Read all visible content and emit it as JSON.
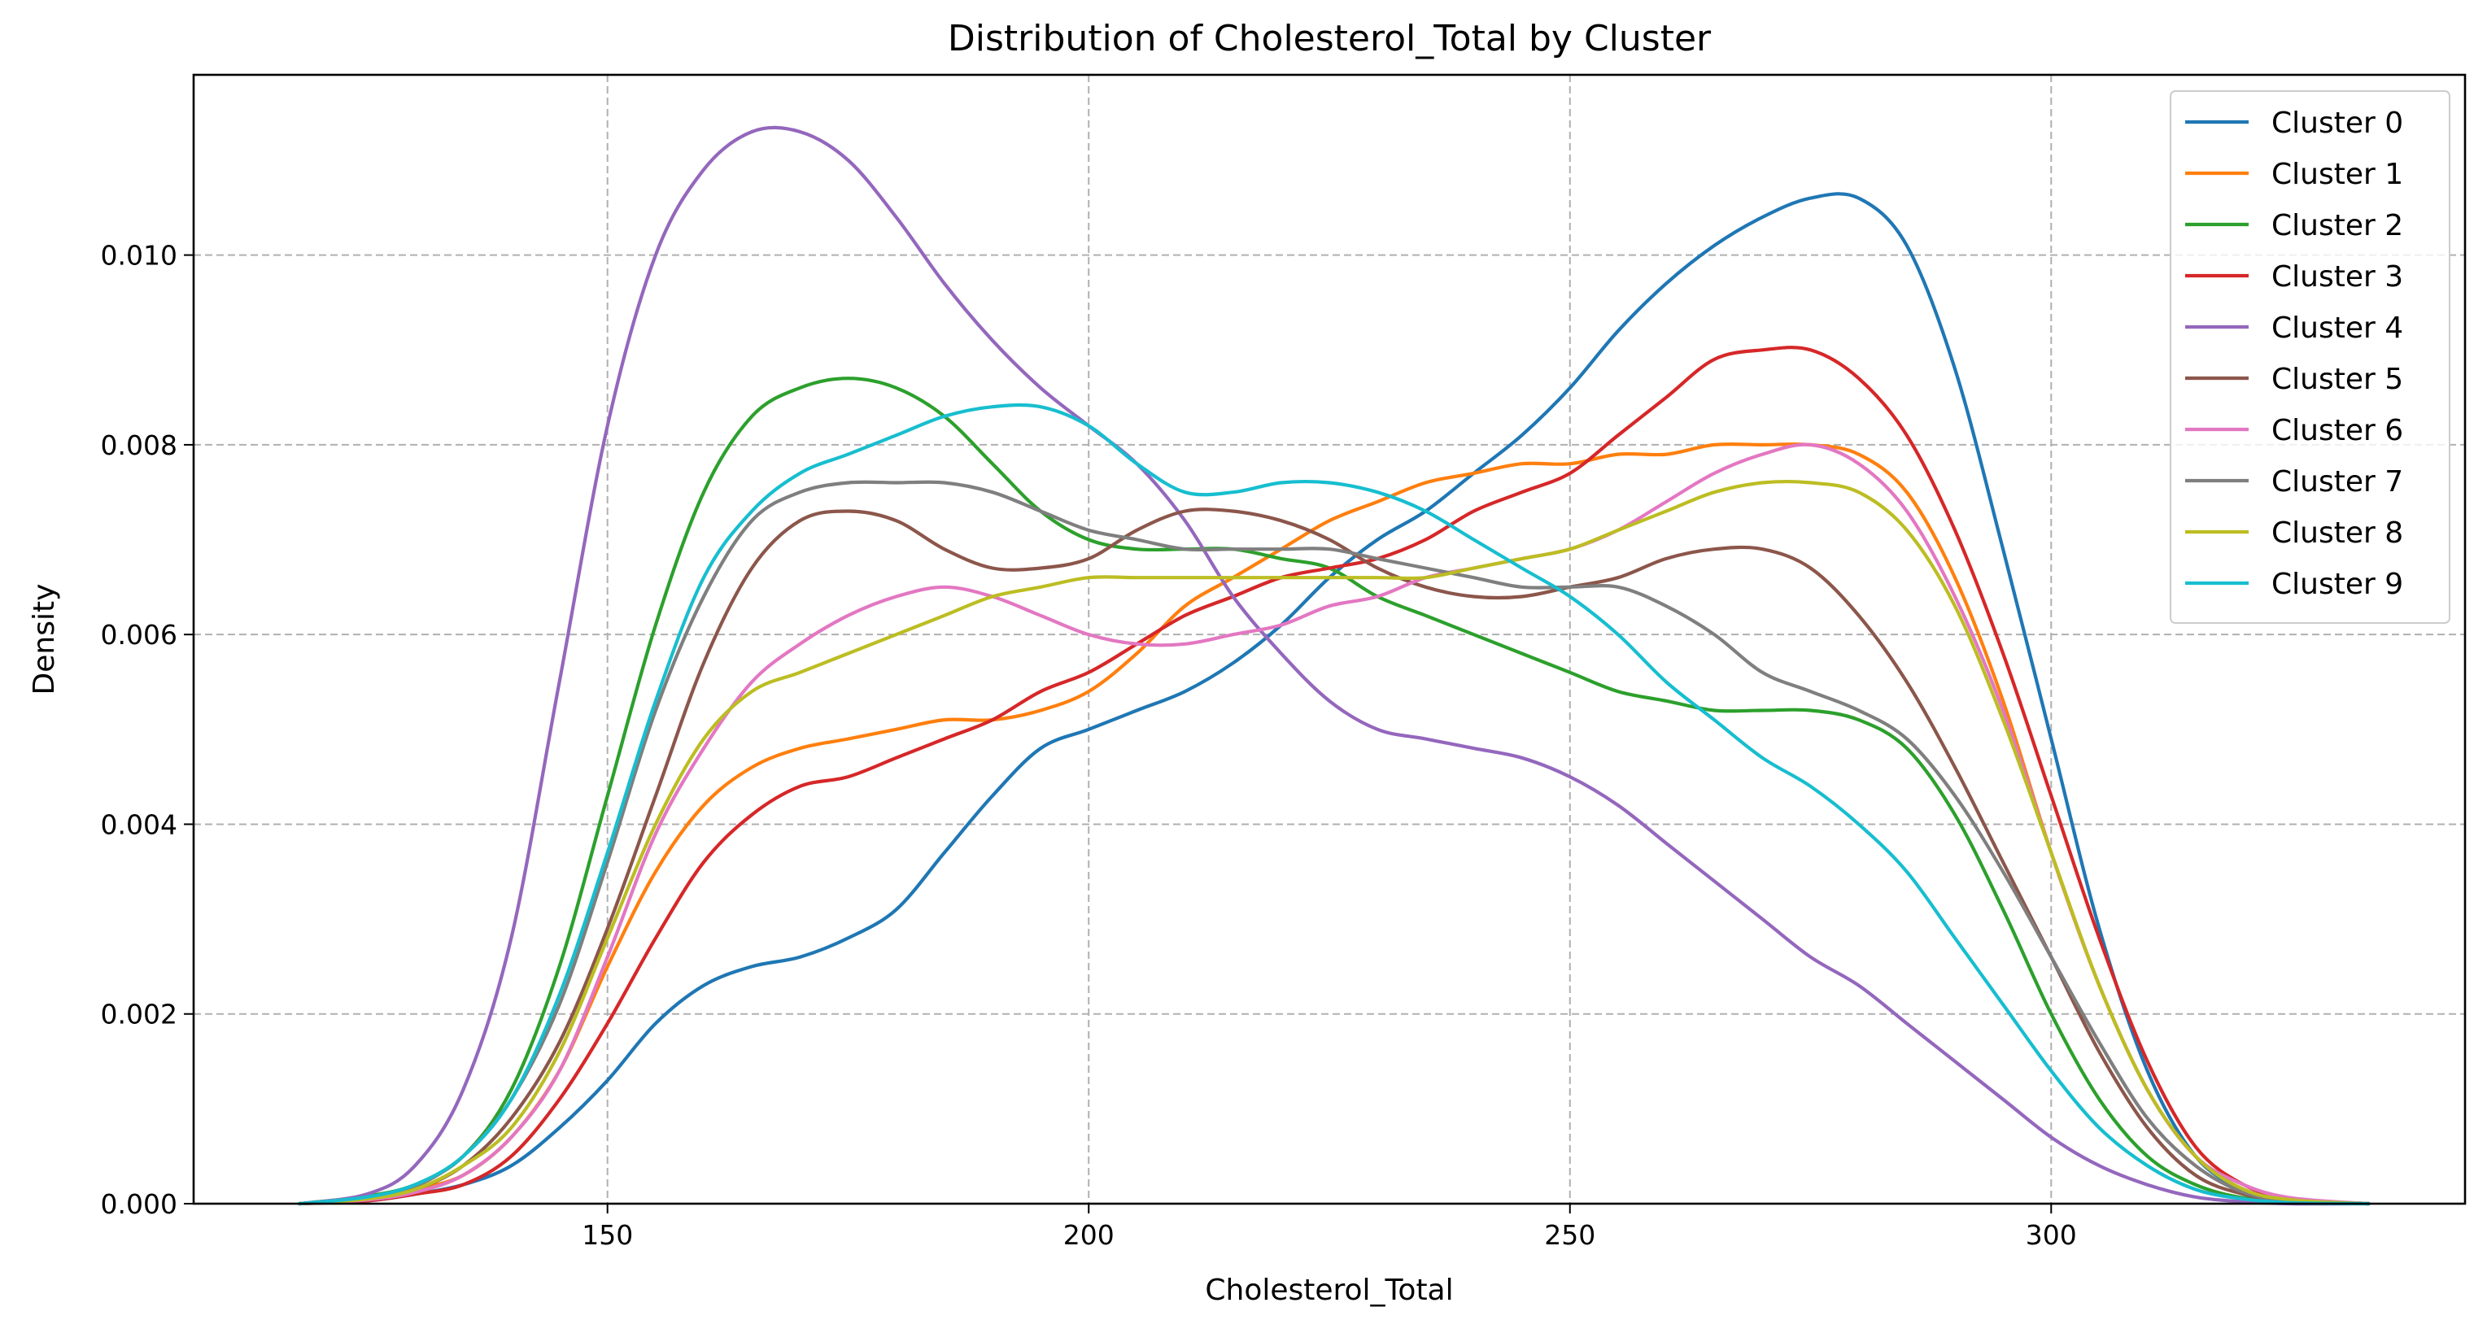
{
  "chart_data": {
    "type": "line",
    "title": "Distribution of Cholesterol_Total by Cluster",
    "xlabel": "Cholesterol_Total",
    "ylabel": "Density",
    "xlim": [
      107,
      343
    ],
    "ylim": [
      0,
      0.0119
    ],
    "x_ticks": [
      150,
      200,
      250,
      300
    ],
    "x_tick_labels": [
      "150",
      "200",
      "250",
      "300"
    ],
    "y_ticks": [
      0,
      0.002,
      0.004,
      0.006,
      0.008,
      0.01
    ],
    "y_tick_labels": [
      "0.000",
      "0.002",
      "0.004",
      "0.006",
      "0.008",
      "0.010"
    ],
    "grid": true,
    "legend_position": "top-right",
    "x": [
      118,
      125,
      130,
      135,
      140,
      145,
      150,
      155,
      160,
      165,
      170,
      175,
      180,
      185,
      190,
      195,
      200,
      205,
      210,
      215,
      220,
      225,
      230,
      235,
      240,
      245,
      250,
      255,
      260,
      265,
      270,
      275,
      280,
      285,
      290,
      295,
      300,
      305,
      310,
      315,
      320,
      325,
      333
    ],
    "series": [
      {
        "name": "Cluster 0",
        "color": "#1f77b4",
        "values": [
          0.0,
          3e-05,
          0.0001,
          0.0002,
          0.0004,
          0.0008,
          0.0013,
          0.0019,
          0.0023,
          0.0025,
          0.0026,
          0.0028,
          0.0031,
          0.0037,
          0.0043,
          0.0048,
          0.005,
          0.0052,
          0.0054,
          0.0057,
          0.0061,
          0.0066,
          0.007,
          0.0073,
          0.0077,
          0.0081,
          0.0086,
          0.0092,
          0.0097,
          0.0101,
          0.0104,
          0.0106,
          0.0106,
          0.0101,
          0.0088,
          0.0069,
          0.0049,
          0.0029,
          0.0014,
          0.0005,
          0.00015,
          4e-05,
          0.0
        ]
      },
      {
        "name": "Cluster 1",
        "color": "#ff7f0e",
        "values": [
          0.0,
          5e-05,
          0.00015,
          0.0003,
          0.0007,
          0.0014,
          0.0025,
          0.0035,
          0.0042,
          0.0046,
          0.0048,
          0.0049,
          0.005,
          0.0051,
          0.0051,
          0.0052,
          0.0054,
          0.0058,
          0.0063,
          0.0066,
          0.0069,
          0.0072,
          0.0074,
          0.0076,
          0.0077,
          0.0078,
          0.0078,
          0.0079,
          0.0079,
          0.008,
          0.008,
          0.008,
          0.0079,
          0.0075,
          0.0066,
          0.0053,
          0.0037,
          0.0023,
          0.0012,
          0.0005,
          0.00015,
          4e-05,
          0.0
        ]
      },
      {
        "name": "Cluster 2",
        "color": "#2ca02c",
        "values": [
          0.0,
          8e-05,
          0.0002,
          0.0005,
          0.0012,
          0.0025,
          0.0043,
          0.0061,
          0.0075,
          0.0083,
          0.0086,
          0.0087,
          0.0086,
          0.0083,
          0.0078,
          0.0073,
          0.007,
          0.0069,
          0.0069,
          0.0069,
          0.0068,
          0.0067,
          0.0064,
          0.0062,
          0.006,
          0.0058,
          0.0056,
          0.0054,
          0.0053,
          0.0052,
          0.0052,
          0.0052,
          0.0051,
          0.0048,
          0.0041,
          0.0031,
          0.002,
          0.0011,
          0.0005,
          0.0002,
          6e-05,
          2e-05,
          0.0
        ]
      },
      {
        "name": "Cluster 3",
        "color": "#d62728",
        "values": [
          0.0,
          3e-05,
          0.0001,
          0.0002,
          0.0005,
          0.0011,
          0.0019,
          0.0028,
          0.0036,
          0.0041,
          0.0044,
          0.0045,
          0.0047,
          0.0049,
          0.0051,
          0.0054,
          0.0056,
          0.0059,
          0.0062,
          0.0064,
          0.0066,
          0.0067,
          0.0068,
          0.007,
          0.0073,
          0.0075,
          0.0077,
          0.0081,
          0.0085,
          0.0089,
          0.009,
          0.009,
          0.0087,
          0.0081,
          0.0071,
          0.0058,
          0.0043,
          0.0028,
          0.0015,
          0.0006,
          0.0002,
          5e-05,
          0.0
        ]
      },
      {
        "name": "Cluster 4",
        "color": "#9467bd",
        "values": [
          0.0,
          0.0001,
          0.0004,
          0.0012,
          0.0028,
          0.0055,
          0.0082,
          0.01,
          0.0109,
          0.0113,
          0.0113,
          0.011,
          0.0104,
          0.0097,
          0.0091,
          0.0086,
          0.0082,
          0.0078,
          0.0072,
          0.0064,
          0.0058,
          0.0053,
          0.005,
          0.0049,
          0.0048,
          0.0047,
          0.0045,
          0.0042,
          0.0038,
          0.0034,
          0.003,
          0.0026,
          0.0023,
          0.0019,
          0.0015,
          0.0011,
          0.0007,
          0.0004,
          0.0002,
          7e-05,
          2e-05,
          0.0,
          0.0
        ]
      },
      {
        "name": "Cluster 5",
        "color": "#8c564b",
        "values": [
          0.0,
          5e-05,
          0.00015,
          0.0004,
          0.0009,
          0.0017,
          0.0029,
          0.0043,
          0.0057,
          0.0067,
          0.0072,
          0.0073,
          0.0072,
          0.0069,
          0.0067,
          0.0067,
          0.0068,
          0.0071,
          0.0073,
          0.0073,
          0.0072,
          0.007,
          0.0067,
          0.0065,
          0.0064,
          0.0064,
          0.0065,
          0.0066,
          0.0068,
          0.0069,
          0.0069,
          0.0067,
          0.0062,
          0.0055,
          0.0046,
          0.0036,
          0.0026,
          0.0016,
          0.0008,
          0.0003,
          0.0001,
          3e-05,
          0.0
        ]
      },
      {
        "name": "Cluster 6",
        "color": "#e377c2",
        "values": [
          0.0,
          4e-05,
          0.00012,
          0.0003,
          0.0007,
          0.0014,
          0.0026,
          0.0039,
          0.0048,
          0.0055,
          0.0059,
          0.0062,
          0.0064,
          0.0065,
          0.0064,
          0.0062,
          0.006,
          0.0059,
          0.0059,
          0.006,
          0.0061,
          0.0063,
          0.0064,
          0.0066,
          0.0067,
          0.0068,
          0.0069,
          0.0071,
          0.0074,
          0.0077,
          0.0079,
          0.008,
          0.0078,
          0.0073,
          0.0064,
          0.0052,
          0.0037,
          0.0023,
          0.0012,
          0.0005,
          0.0002,
          6e-05,
          0.0
        ]
      },
      {
        "name": "Cluster 7",
        "color": "#7f7f7f",
        "values": [
          0.0,
          6e-05,
          0.00018,
          0.0005,
          0.0011,
          0.0021,
          0.0036,
          0.0052,
          0.0064,
          0.0072,
          0.0075,
          0.0076,
          0.0076,
          0.0076,
          0.0075,
          0.0073,
          0.0071,
          0.007,
          0.0069,
          0.0069,
          0.0069,
          0.0069,
          0.0068,
          0.0067,
          0.0066,
          0.0065,
          0.0065,
          0.0065,
          0.0063,
          0.006,
          0.0056,
          0.0054,
          0.0052,
          0.0049,
          0.0043,
          0.0035,
          0.0026,
          0.0017,
          0.0009,
          0.0004,
          0.00012,
          3e-05,
          0.0
        ]
      },
      {
        "name": "Cluster 8",
        "color": "#bcbd22",
        "values": [
          0.0,
          5e-05,
          0.00015,
          0.0004,
          0.0008,
          0.0016,
          0.0028,
          0.004,
          0.0049,
          0.0054,
          0.0056,
          0.0058,
          0.006,
          0.0062,
          0.0064,
          0.0065,
          0.0066,
          0.0066,
          0.0066,
          0.0066,
          0.0066,
          0.0066,
          0.0066,
          0.0066,
          0.0067,
          0.0068,
          0.0069,
          0.0071,
          0.0073,
          0.0075,
          0.0076,
          0.0076,
          0.0075,
          0.0071,
          0.0063,
          0.0051,
          0.0037,
          0.0023,
          0.0012,
          0.0005,
          0.00015,
          4e-05,
          0.0
        ]
      },
      {
        "name": "Cluster 9",
        "color": "#17becf",
        "values": [
          0.0,
          7e-05,
          0.0002,
          0.0005,
          0.0011,
          0.0022,
          0.0037,
          0.0053,
          0.0066,
          0.0073,
          0.0077,
          0.0079,
          0.0081,
          0.0083,
          0.0084,
          0.0084,
          0.0082,
          0.0078,
          0.0075,
          0.0075,
          0.0076,
          0.0076,
          0.0075,
          0.0073,
          0.007,
          0.0067,
          0.0064,
          0.006,
          0.0055,
          0.0051,
          0.0047,
          0.0044,
          0.004,
          0.0035,
          0.0028,
          0.0021,
          0.0014,
          0.0008,
          0.0004,
          0.00015,
          5e-05,
          1e-05,
          0.0
        ]
      }
    ]
  }
}
